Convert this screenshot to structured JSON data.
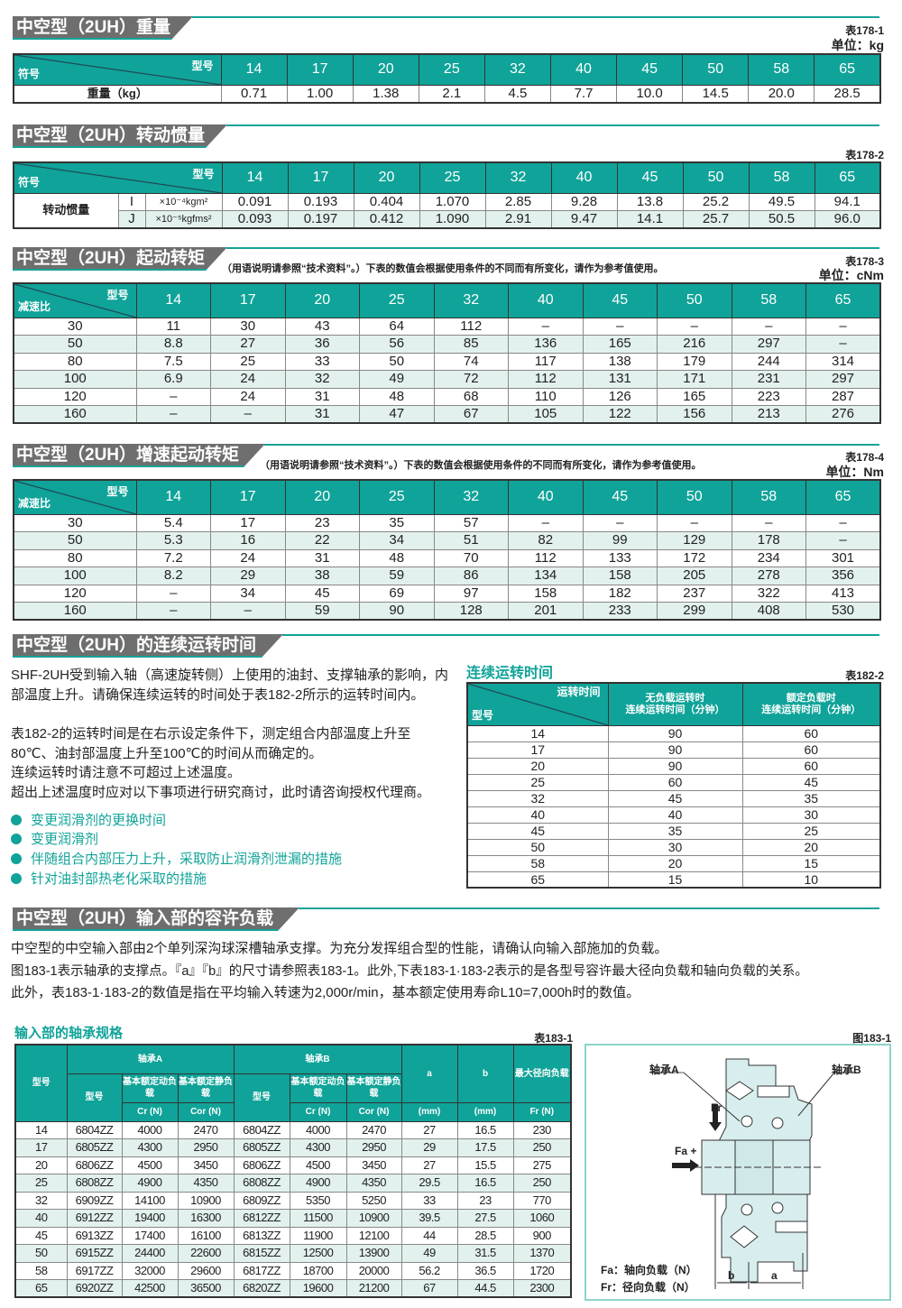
{
  "models": [
    "14",
    "17",
    "20",
    "25",
    "32",
    "40",
    "45",
    "50",
    "58",
    "65"
  ],
  "weight": {
    "title": "中空型（2UH）重量",
    "table_no": "表178-1",
    "unit": "单位：kg",
    "corner_top": "型号",
    "corner_bottom": "符号",
    "row_label": "重量（kg）",
    "values": [
      "0.71",
      "1.00",
      "1.38",
      "2.1",
      "4.5",
      "7.7",
      "10.0",
      "14.5",
      "20.0",
      "28.5"
    ]
  },
  "inertia": {
    "title": "中空型（2UH）转动惯量",
    "table_no": "表178-2",
    "corner_top": "型号",
    "corner_bottom": "符号",
    "row_label": "转动惯量",
    "rows": [
      {
        "symbol": "I",
        "unit": "×10⁻⁴kgm²",
        "values": [
          "0.091",
          "0.193",
          "0.404",
          "1.070",
          "2.85",
          "9.28",
          "13.8",
          "25.2",
          "49.5",
          "94.1"
        ]
      },
      {
        "symbol": "J",
        "unit": "×10⁻⁵kgfms²",
        "values": [
          "0.093",
          "0.197",
          "0.412",
          "1.090",
          "2.91",
          "9.47",
          "14.1",
          "25.7",
          "50.5",
          "96.0"
        ]
      }
    ]
  },
  "start_torque": {
    "title": "中空型（2UH）起动转矩",
    "note": "（用语说明请参照“技术资料”。）下表的数值会根据使用条件的不同而有所变化，请作为参考值使用。",
    "table_no": "表178-3",
    "unit": "单位：cNm",
    "corner_top": "型号",
    "corner_bottom": "减速比",
    "rows": [
      {
        "ratio": "30",
        "values": [
          "11",
          "30",
          "43",
          "64",
          "112",
          "–",
          "–",
          "–",
          "–",
          "–"
        ]
      },
      {
        "ratio": "50",
        "values": [
          "8.8",
          "27",
          "36",
          "56",
          "85",
          "136",
          "165",
          "216",
          "297",
          "–"
        ]
      },
      {
        "ratio": "80",
        "values": [
          "7.5",
          "25",
          "33",
          "50",
          "74",
          "117",
          "138",
          "179",
          "244",
          "314"
        ]
      },
      {
        "ratio": "100",
        "values": [
          "6.9",
          "24",
          "32",
          "49",
          "72",
          "112",
          "131",
          "171",
          "231",
          "297"
        ]
      },
      {
        "ratio": "120",
        "values": [
          "–",
          "24",
          "31",
          "48",
          "68",
          "110",
          "126",
          "165",
          "223",
          "287"
        ]
      },
      {
        "ratio": "160",
        "values": [
          "–",
          "–",
          "31",
          "47",
          "67",
          "105",
          "122",
          "156",
          "213",
          "276"
        ]
      }
    ]
  },
  "speedup_torque": {
    "title": "中空型（2UH）增速起动转矩",
    "note": "（用语说明请参照“技术资料”。）下表的数值会根据使用条件的不同而有所变化，请作为参考值使用。",
    "table_no": "表178-4",
    "unit": "单位：Nm",
    "corner_top": "型号",
    "corner_bottom": "减速比",
    "rows": [
      {
        "ratio": "30",
        "values": [
          "5.4",
          "17",
          "23",
          "35",
          "57",
          "–",
          "–",
          "–",
          "–",
          "–"
        ]
      },
      {
        "ratio": "50",
        "values": [
          "5.3",
          "16",
          "22",
          "34",
          "51",
          "82",
          "99",
          "129",
          "178",
          "–"
        ]
      },
      {
        "ratio": "80",
        "values": [
          "7.2",
          "24",
          "31",
          "48",
          "70",
          "112",
          "133",
          "172",
          "234",
          "301"
        ]
      },
      {
        "ratio": "100",
        "values": [
          "8.2",
          "29",
          "38",
          "59",
          "86",
          "134",
          "158",
          "205",
          "278",
          "356"
        ]
      },
      {
        "ratio": "120",
        "values": [
          "–",
          "34",
          "45",
          "69",
          "97",
          "158",
          "182",
          "237",
          "322",
          "413"
        ]
      },
      {
        "ratio": "160",
        "values": [
          "–",
          "–",
          "59",
          "90",
          "128",
          "201",
          "233",
          "299",
          "408",
          "530"
        ]
      }
    ]
  },
  "continuous": {
    "title": "中空型（2UH）的连续运转时间",
    "paragraphs": [
      "SHF-2UH受到输入轴（高速旋转侧）上使用的油封、支撑轴承的影响，内部温度上升。请确保连续运转的时间处于表182-2所示的运转时间内。",
      "表182-2的运转时间是在右示设定条件下，测定组合内部温度上升至80℃、油封部温度上升至100℃的时间从而确定的。",
      "连续运转时请注意不可超过上述温度。",
      "超出上述温度时应对以下事项进行研究商讨，此时请咨询授权代理商。"
    ],
    "bullets": [
      "变更润滑剂的更换时间",
      "变更润滑剂",
      "伴随组合内部压力上升，采取防止润滑剂泄漏的措施",
      "针对油封部热老化采取的措施"
    ],
    "table_title": "连续运转时间",
    "table_no": "表182-2",
    "corner_top": "运转时间",
    "corner_bottom": "型号",
    "headers": [
      "无负载运转时\n连续运转时间（分钟）",
      "额定负载时\n连续运转时间（分钟）"
    ],
    "rows": [
      [
        "14",
        "90",
        "60"
      ],
      [
        "17",
        "90",
        "60"
      ],
      [
        "20",
        "90",
        "60"
      ],
      [
        "25",
        "60",
        "45"
      ],
      [
        "32",
        "45",
        "35"
      ],
      [
        "40",
        "40",
        "30"
      ],
      [
        "45",
        "35",
        "25"
      ],
      [
        "50",
        "30",
        "20"
      ],
      [
        "58",
        "20",
        "15"
      ],
      [
        "65",
        "15",
        "10"
      ]
    ]
  },
  "input": {
    "title": "中空型（2UH）输入部的容许负载",
    "paragraphs": [
      "中空型的中空输入部由2个单列深沟球深槽轴承支撑。为充分发挥组合型的性能，请确认向输入部施加的负载。",
      "图183-1表示轴承的支撑点。『a』『b』的尺寸请参照表183-1。此外,下表183-1·183-2表示的是各型号容许最大径向负载和轴向负载的关系。",
      "此外，表183-1·183-2的数值是指在平均输入转速为2,000r/min，基本额定使用寿命L10=7,000h时的数值。"
    ],
    "table_title": "输入部的轴承规格",
    "table_no": "表183-1",
    "figure_no": "图183-1",
    "headers": {
      "model": "型号",
      "bearing_a": "轴承A",
      "bearing_b": "轴承B",
      "sub_model": "型号",
      "dyn": "基本额定动负载",
      "stat": "基本额定静负载",
      "cr": "Cr (N)",
      "cor": "Cor (N)",
      "a": "a",
      "b": "b",
      "a_unit": "(mm)",
      "b_unit": "(mm)",
      "fr": "最大径向负载",
      "fr_unit": "Fr (N)"
    },
    "rows": [
      [
        "14",
        "6804ZZ",
        "4000",
        "2470",
        "6804ZZ",
        "4000",
        "2470",
        "27",
        "16.5",
        "230"
      ],
      [
        "17",
        "6805ZZ",
        "4300",
        "2950",
        "6805ZZ",
        "4300",
        "2950",
        "29",
        "17.5",
        "250"
      ],
      [
        "20",
        "6806ZZ",
        "4500",
        "3450",
        "6806ZZ",
        "4500",
        "3450",
        "27",
        "15.5",
        "275"
      ],
      [
        "25",
        "6808ZZ",
        "4900",
        "4350",
        "6808ZZ",
        "4900",
        "4350",
        "29.5",
        "16.5",
        "250"
      ],
      [
        "32",
        "6909ZZ",
        "14100",
        "10900",
        "6809ZZ",
        "5350",
        "5250",
        "33",
        "23",
        "770"
      ],
      [
        "40",
        "6912ZZ",
        "19400",
        "16300",
        "6812ZZ",
        "11500",
        "10900",
        "39.5",
        "27.5",
        "1060"
      ],
      [
        "45",
        "6913ZZ",
        "17400",
        "16100",
        "6813ZZ",
        "11900",
        "12100",
        "44",
        "28.5",
        "900"
      ],
      [
        "50",
        "6915ZZ",
        "24400",
        "22600",
        "6815ZZ",
        "12500",
        "13900",
        "49",
        "31.5",
        "1370"
      ],
      [
        "58",
        "6917ZZ",
        "32000",
        "29600",
        "6817ZZ",
        "18700",
        "20000",
        "56.2",
        "36.5",
        "1720"
      ],
      [
        "65",
        "6920ZZ",
        "42500",
        "36500",
        "6820ZZ",
        "19600",
        "21200",
        "67",
        "44.5",
        "2300"
      ]
    ],
    "figure": {
      "bearing_a": "轴承A",
      "bearing_b": "轴承B",
      "fr": "Fr",
      "fa": "Fa +",
      "dim_a": "a",
      "dim_b": "b",
      "legend_fa": "Fa：轴向负载（N）",
      "legend_fr": "Fr：径向负载（N）"
    }
  },
  "colors": {
    "teal": "#10a399",
    "header_gray": "#6e6e6e",
    "row_alt": "#e2f1ee"
  }
}
